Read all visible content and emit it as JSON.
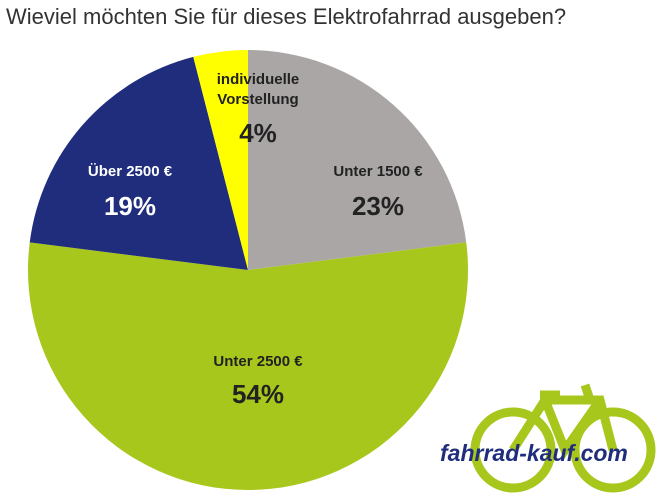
{
  "chart_data": {
    "type": "pie",
    "title": "Wieviel möchten Sie für dieses Elektrofahrrad ausgeben?",
    "categories": [
      "Unter 1500 €",
      "Unter 2500 €",
      "Über 2500 €",
      "individuelle Vorstellung"
    ],
    "values": [
      23,
      54,
      19,
      4
    ],
    "value_labels": [
      "23%",
      "54%",
      "19%",
      "4%"
    ],
    "colors": [
      "#aaa6a6",
      "#a8c71c",
      "#1f2d7c",
      "#ffff00"
    ]
  },
  "logo": "fahrrad-kauf.com"
}
